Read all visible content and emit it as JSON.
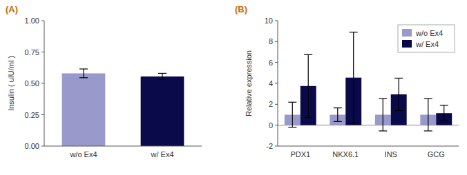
{
  "chart_data": [
    {
      "type": "bar",
      "title": "(A)",
      "categories": [
        "w/o Ex4",
        "w/ Ex4"
      ],
      "values": [
        0.58,
        0.555
      ],
      "errors": [
        0.035,
        0.025
      ],
      "colors": [
        "#9999cc",
        "#0a0a4a"
      ],
      "ylabel": "Insulin ( uIU/ml )",
      "ylim": [
        0,
        1.0
      ],
      "yticks": [
        {
          "value": 0,
          "label": "0.00"
        },
        0.25,
        {
          "value": 0.5,
          "label": "0.50"
        },
        0.75,
        {
          "value": 1.0,
          "label": "1.00"
        }
      ]
    },
    {
      "type": "bar",
      "title": "(B)",
      "categories": [
        "PDX1",
        "NKX6.1",
        "INS",
        "GCG"
      ],
      "series": [
        {
          "name": "w/o Ex4",
          "color": "#9999cc",
          "values": [
            1.0,
            1.0,
            1.0,
            1.0
          ],
          "errors": [
            1.2,
            0.65,
            1.55,
            1.55
          ]
        },
        {
          "name": "w/ Ex4",
          "color": "#0a0a4a",
          "values": [
            3.75,
            4.55,
            2.95,
            1.15
          ],
          "errors": [
            3.0,
            4.35,
            1.55,
            0.75
          ]
        }
      ],
      "ylabel": "Relative expression",
      "ylim": [
        -2,
        10
      ],
      "yticks": [
        -2,
        0,
        2,
        4,
        6,
        8,
        10
      ],
      "legend": "upper right"
    }
  ]
}
